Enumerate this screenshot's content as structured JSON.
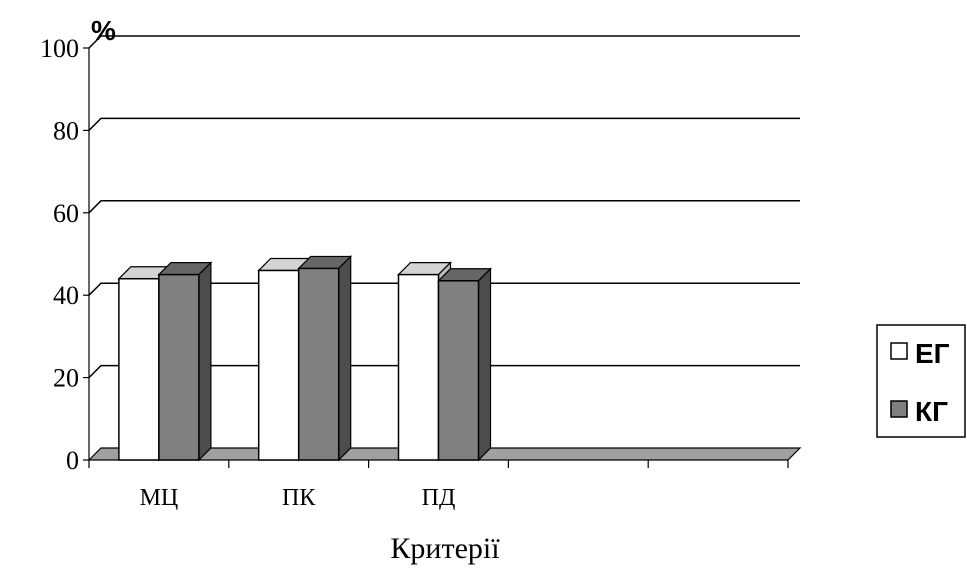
{
  "chart_data": {
    "type": "bar",
    "title": "",
    "ylabel": "%",
    "xlabel": "Критерії",
    "ylim": [
      0,
      100
    ],
    "yticks": [
      0,
      20,
      40,
      60,
      80,
      100
    ],
    "grid": true,
    "legend_position": "right",
    "categories": [
      "МЦ",
      "ПК",
      "ПД",
      "",
      ""
    ],
    "series": [
      {
        "name": "ЕГ",
        "color": "#ffffff",
        "values": [
          44,
          46,
          45,
          null,
          null
        ]
      },
      {
        "name": "КГ",
        "color": "#808080",
        "values": [
          45,
          46.5,
          43.5,
          null,
          null
        ]
      }
    ]
  }
}
